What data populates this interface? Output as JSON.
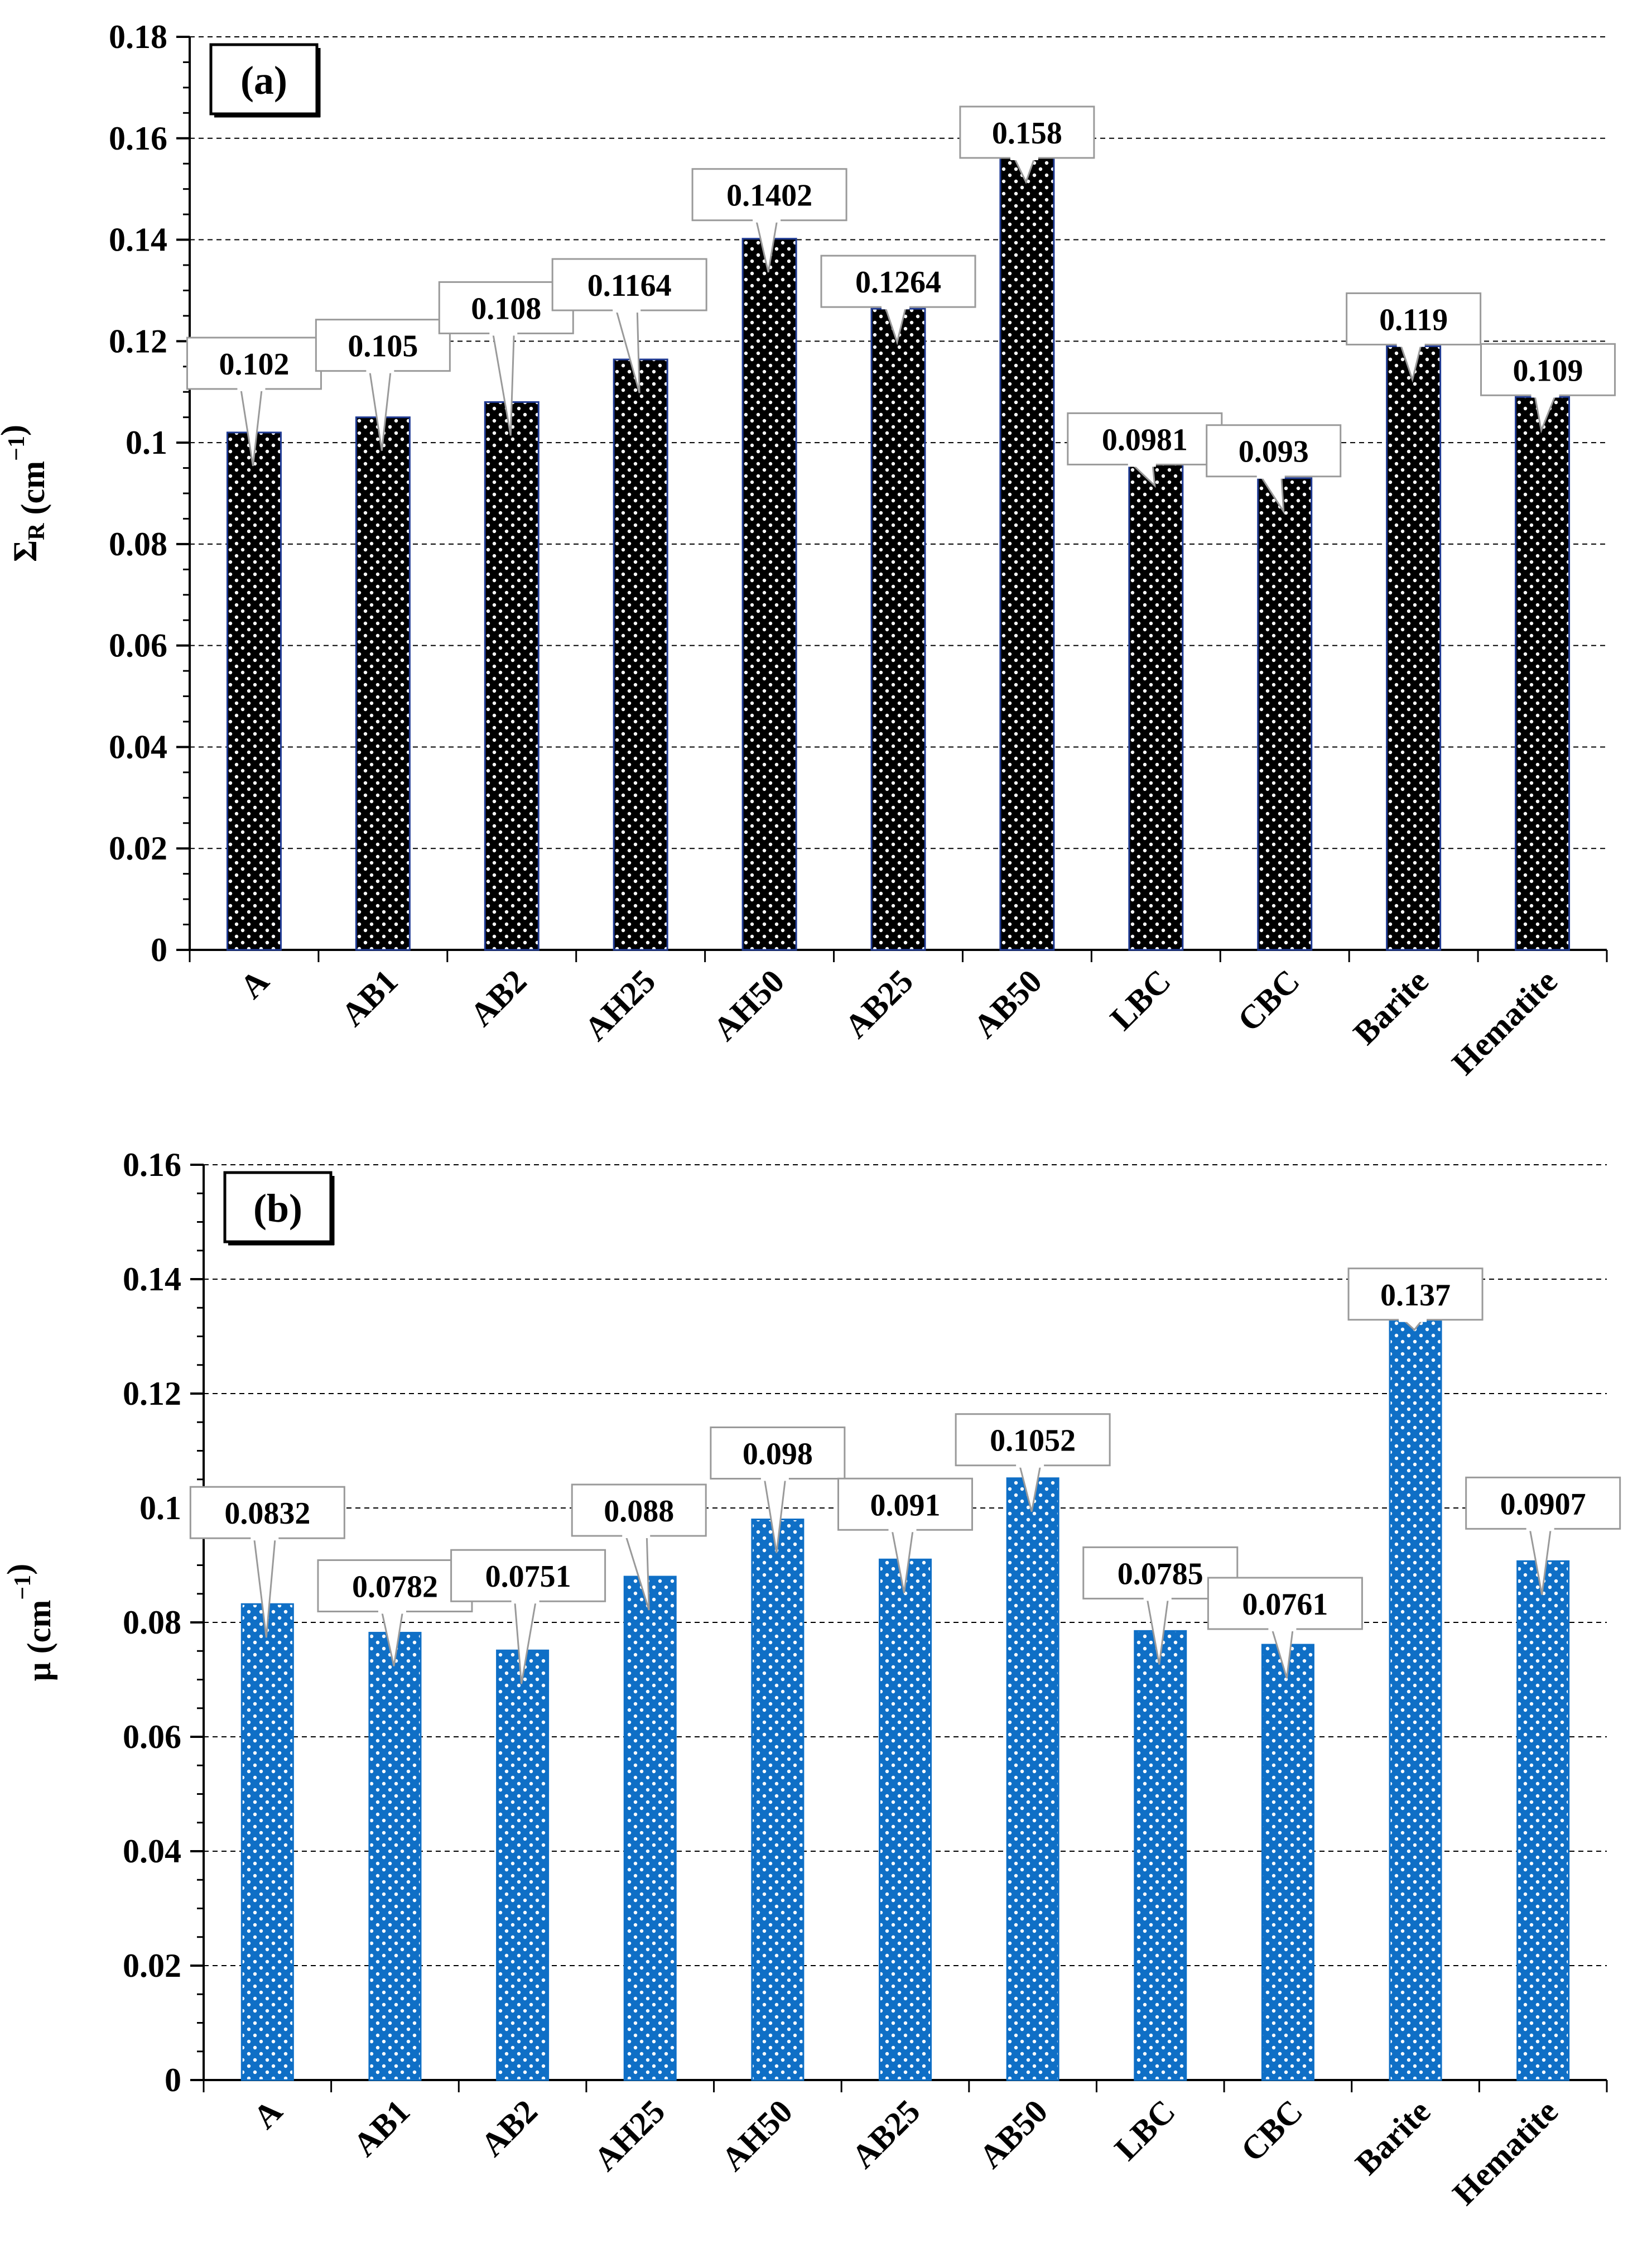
{
  "chart_data": [
    {
      "type": "bar",
      "panel_label": "(a)",
      "ylabel_main": "Σ",
      "ylabel_sub": "R",
      "ylabel_unit": " (cm",
      "ylabel_exp": "−1",
      "ylabel_close": ")",
      "ylim": [
        0,
        0.18
      ],
      "yticks": [
        0,
        0.02,
        0.04,
        0.06,
        0.08,
        0.1,
        0.12,
        0.14,
        0.16,
        0.18
      ],
      "ytick_labels": [
        "0",
        "0.02",
        "0.04",
        "0.06",
        "0.08",
        "0.1",
        "0.12",
        "0.14",
        "0.16",
        "0.18"
      ],
      "grid": "dashed horizontal",
      "categories": [
        "A",
        "AB1",
        "AB2",
        "AH25",
        "AH50",
        "AB25",
        "AB50",
        "LBC",
        "CBC",
        "Barite",
        "Hematite"
      ],
      "values": [
        0.102,
        0.105,
        0.108,
        0.1164,
        0.1402,
        0.1264,
        0.158,
        0.0981,
        0.093,
        0.119,
        0.109
      ],
      "data_labels": [
        "0.102",
        "0.105",
        "0.108",
        "0.1164",
        "0.1402",
        "0.1264",
        "0.158",
        "0.0981",
        "0.093",
        "0.119",
        "0.109"
      ],
      "bar_color": "#000000",
      "bar_edge": "#1f3a93",
      "dot_color": "#ffffff"
    },
    {
      "type": "bar",
      "panel_label": "(b)",
      "ylabel_main": "μ",
      "ylabel_sub": "",
      "ylabel_unit": " (cm",
      "ylabel_exp": "−1",
      "ylabel_close": ")",
      "ylim": [
        0,
        0.16
      ],
      "yticks": [
        0,
        0.02,
        0.04,
        0.06,
        0.08,
        0.1,
        0.12,
        0.14,
        0.16
      ],
      "ytick_labels": [
        "0",
        "0.02",
        "0.04",
        "0.06",
        "0.08",
        "0.1",
        "0.12",
        "0.14",
        "0.16"
      ],
      "grid": "dashed horizontal",
      "categories": [
        "A",
        "AB1",
        "AB2",
        "AH25",
        "AH50",
        "AB25",
        "AB50",
        "LBC",
        "CBC",
        "Barite",
        "Hematite"
      ],
      "values": [
        0.0832,
        0.0782,
        0.0751,
        0.088,
        0.098,
        0.091,
        0.1052,
        0.0785,
        0.0761,
        0.137,
        0.0907
      ],
      "data_labels": [
        "0.0832",
        "0.0782",
        "0.0751",
        "0.088",
        "0.098",
        "0.091",
        "0.1052",
        "0.0785",
        "0.0761",
        "0.137",
        "0.0907"
      ],
      "bar_color": "#0f6fc6",
      "bar_edge": "#0f6fc6",
      "dot_color": "#ffffff"
    }
  ]
}
